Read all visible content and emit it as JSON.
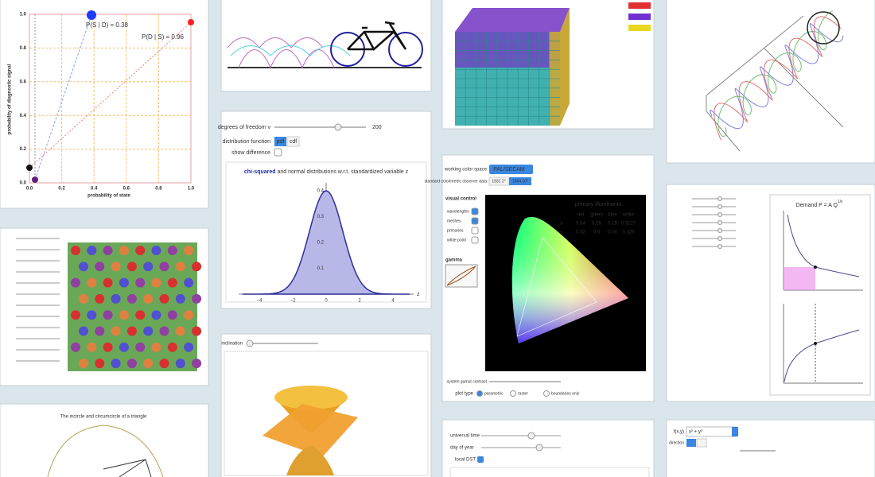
{
  "probability_panel": {
    "label_sd": "P(S | D) = 0.38",
    "label_ds": "P(D | S) = 0.96",
    "y_axis_label": "probability of diagnostic signal",
    "x_axis_label": "probability of state",
    "ticks": [
      "0.0",
      "0.2",
      "0.4",
      "0.6",
      "0.8",
      "1.0"
    ]
  },
  "chi_squared_panel": {
    "dof_label": "degrees of freedom ν",
    "dof_value": "200",
    "distribution_label": "distribution function",
    "options": [
      "pdf",
      "cdf"
    ],
    "show_difference": "show difference",
    "title_bold": "chi-squared",
    "title_rest": "and normal distributions w.r.t. standardized variable z",
    "x_ticks": [
      "−4",
      "−2",
      "0",
      "2",
      "4"
    ],
    "y_ticks": [
      "0.1",
      "0.2",
      "0.3",
      "0.4"
    ],
    "x_axis": "z"
  },
  "color_panel": {
    "working_space_label": "working color space",
    "working_space": "PAL/SECAM",
    "observer_label": "standard colorimetric observer data",
    "observer_options": [
      "1931 2°",
      "1964 10°"
    ],
    "visual_control": "visual control",
    "checkboxes": [
      "wavelengths",
      "meshes",
      "primaries",
      "white point"
    ],
    "gamma": "gamma",
    "table_title": "primary illuminants",
    "table_header": [
      "red",
      "green",
      "blue",
      "white"
    ],
    "table_rows": [
      [
        "x",
        "0.64",
        "0.29",
        "0.15",
        "0.3127"
      ],
      [
        "y",
        "0.33",
        "0.6",
        "0.06",
        "0.329"
      ]
    ],
    "gamut_label": "system gamut contrast",
    "plot_type_label": "plot type",
    "plot_types": [
      "parametric",
      "raster",
      "boundaries only"
    ]
  },
  "demand_panel": {
    "title": "Demand P = A Q",
    "exponent": "1/ε"
  },
  "cone_panel": {
    "slider_label": "inclination"
  },
  "triangle_panel": {
    "title": "The incircle and circumcircle of a triangle"
  },
  "time_panel": {
    "sliders": [
      "universal time",
      "day of year"
    ],
    "checkbox": "local DST"
  },
  "function_panel": {
    "input_label": "f(x,y)",
    "input_value": "x² + y²",
    "direction_label": "direction"
  }
}
